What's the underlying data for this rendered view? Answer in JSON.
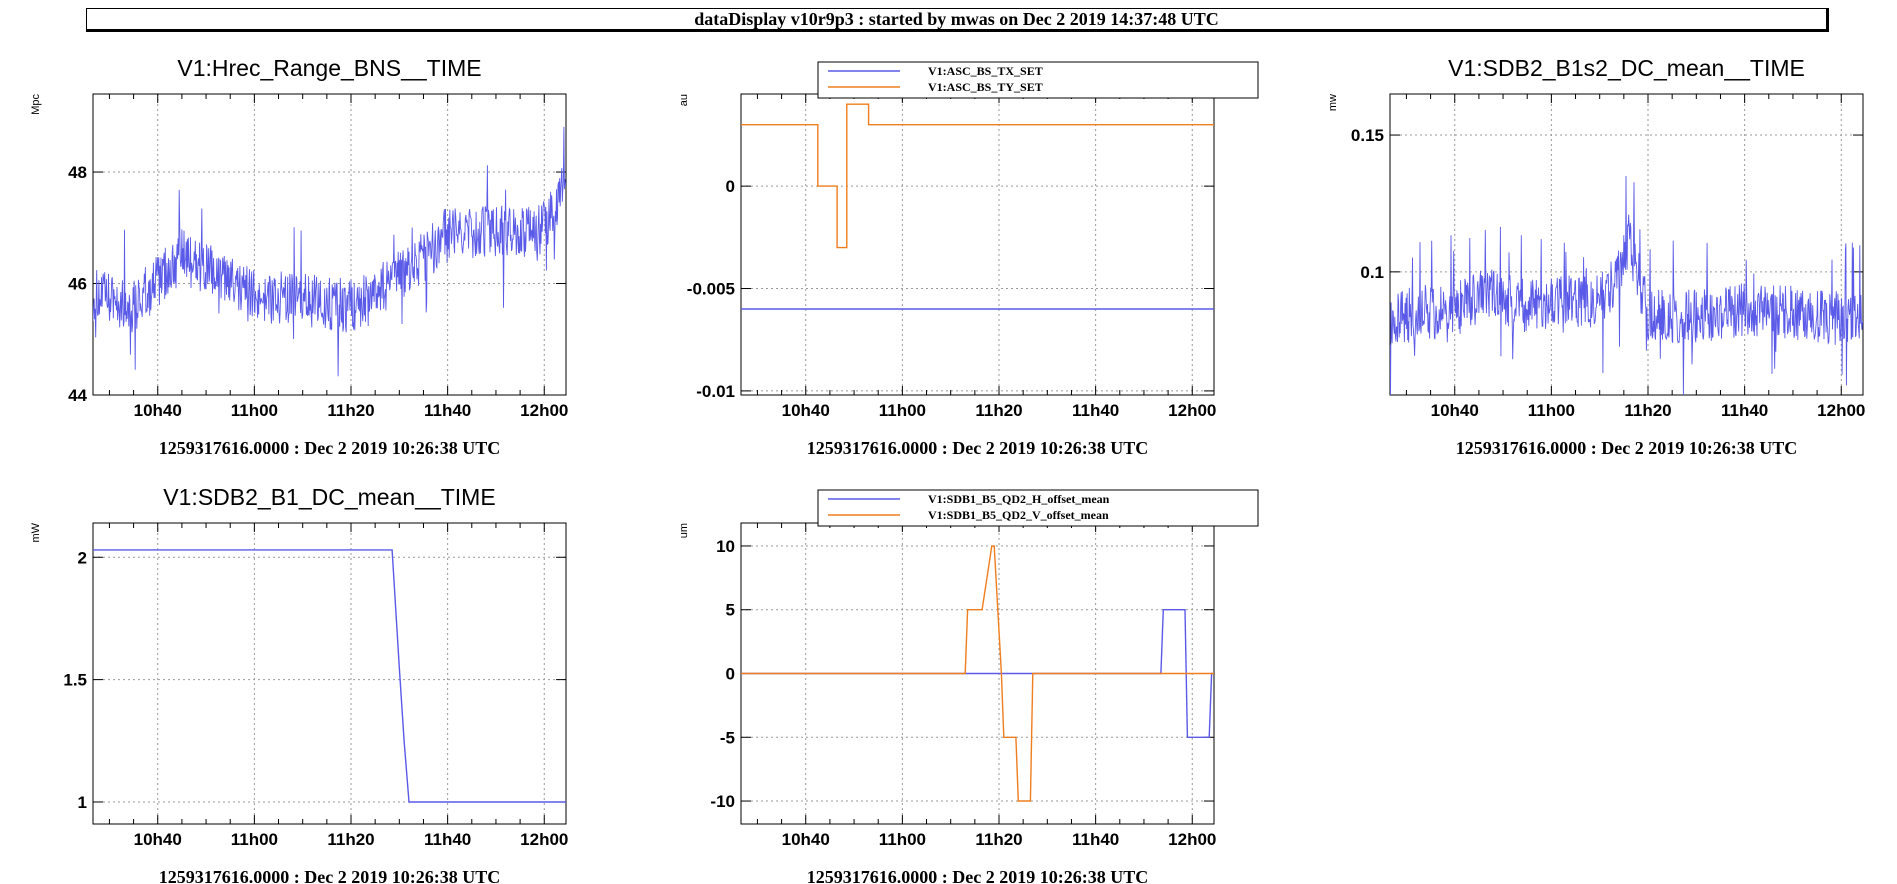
{
  "header": {
    "title": "dataDisplay v10r9p3 : started by mwas on Dec  2 2019 14:37:48 UTC"
  },
  "chart_data": [
    {
      "type": "line",
      "title": "V1:Hrec_Range_BNS__TIME",
      "ylabel": "Mpc",
      "xlabel": "1259317616.0000 : Dec  2 2019 10:26:38 UTC",
      "x_ticks": [
        "10h40",
        "11h00",
        "11h20",
        "11h40",
        "12h00"
      ],
      "y_ticks": [
        44,
        46,
        48
      ],
      "x_range_min": [
        26.6,
        124.5
      ],
      "ylim": [
        44,
        49.4
      ],
      "grid": true,
      "series": [
        {
          "color": "#5a5ae8",
          "noisy": true,
          "x": [
            26.6,
            35,
            45,
            55,
            60,
            70,
            80,
            90,
            100,
            110,
            120,
            124.5
          ],
          "values": [
            45.8,
            45.6,
            46.5,
            46.0,
            45.8,
            45.7,
            45.6,
            46.1,
            46.9,
            46.9,
            47.0,
            47.8
          ]
        }
      ]
    },
    {
      "type": "line",
      "title": "",
      "ylabel": "au",
      "xlabel": "1259317616.0000 : Dec  2 2019 10:26:38 UTC",
      "x_ticks": [
        "10h40",
        "11h00",
        "11h20",
        "11h40",
        "12h00"
      ],
      "y_ticks": [
        0,
        -0.005,
        -0.01
      ],
      "y_tick_labels": [
        "0",
        "-0.005",
        "-0.01"
      ],
      "x_range_min": [
        26.6,
        124.5
      ],
      "ylim": [
        -0.0102,
        0.0045
      ],
      "grid": true,
      "legend": "top",
      "series": [
        {
          "name": "V1:ASC_BS_TX_SET",
          "color": "#5a5ae8",
          "step": true,
          "x": [
            26.6,
            124.5
          ],
          "values": [
            -0.006,
            -0.006
          ]
        },
        {
          "name": "V1:ASC_BS_TY_SET",
          "color": "#f07d1e",
          "step": true,
          "x": [
            26.6,
            42.5,
            46.5,
            48.5,
            50.5,
            53,
            124.5
          ],
          "values": [
            0.003,
            0,
            -0.003,
            0.004,
            0.004,
            0.003,
            0.003
          ]
        }
      ]
    },
    {
      "type": "line",
      "title": "V1:SDB2_B1s2_DC_mean__TIME",
      "ylabel": "mw",
      "xlabel": "1259317616.0000 : Dec  2 2019 10:26:38 UTC",
      "x_ticks": [
        "10h40",
        "11h00",
        "11h20",
        "11h40",
        "12h00"
      ],
      "y_ticks": [
        0.1,
        0.15
      ],
      "x_range_min": [
        26.6,
        124.5
      ],
      "ylim": [
        0.055,
        0.165
      ],
      "grid": true,
      "series": [
        {
          "color": "#5a5ae8",
          "noisy": true,
          "x": [
            26.6,
            40,
            48,
            52,
            60,
            70,
            74,
            76,
            80,
            90,
            100,
            110,
            124.5
          ],
          "values": [
            0.083,
            0.086,
            0.093,
            0.087,
            0.089,
            0.089,
            0.099,
            0.112,
            0.084,
            0.084,
            0.086,
            0.085,
            0.082
          ]
        }
      ]
    },
    {
      "type": "line",
      "title": "V1:SDB2_B1_DC_mean__TIME",
      "ylabel": "mW",
      "xlabel": "1259317616.0000 : Dec  2 2019 10:26:38 UTC",
      "x_ticks": [
        "10h40",
        "11h00",
        "11h20",
        "11h40",
        "12h00"
      ],
      "y_ticks": [
        1,
        1.5,
        2
      ],
      "x_range_min": [
        26.6,
        124.5
      ],
      "ylim": [
        0.91,
        2.14
      ],
      "grid": true,
      "series": [
        {
          "color": "#5a5ae8",
          "x": [
            26.6,
            88.5,
            90,
            91,
            92,
            124.5
          ],
          "values": [
            2.03,
            2.03,
            1.55,
            1.25,
            1.0,
            1.0
          ]
        }
      ]
    },
    {
      "type": "line",
      "title": "",
      "ylabel": "um",
      "xlabel": "1259317616.0000 : Dec  2 2019 10:26:38 UTC",
      "x_ticks": [
        "10h40",
        "11h00",
        "11h20",
        "11h40",
        "12h00"
      ],
      "y_ticks": [
        -10,
        -5,
        0,
        5,
        10
      ],
      "x_range_min": [
        26.6,
        124.5
      ],
      "ylim": [
        -11.8,
        11.8
      ],
      "grid": true,
      "legend": "top",
      "series": [
        {
          "name": "V1:SDB1_B5_QD2_H_offset_mean",
          "color": "#5a5ae8",
          "x": [
            26.6,
            113.5,
            114,
            118.5,
            119,
            123.5,
            124,
            124.5
          ],
          "values": [
            0,
            0,
            5,
            5,
            -5,
            -5,
            0,
            0
          ]
        },
        {
          "name": "V1:SDB1_B5_QD2_V_offset_mean",
          "color": "#f07d1e",
          "x": [
            26.6,
            73,
            73.5,
            76,
            76.5,
            78.5,
            79,
            80.5,
            81,
            83.5,
            84,
            86.5,
            87,
            87.5,
            124.5
          ],
          "values": [
            0,
            0,
            5,
            5,
            5,
            10,
            10,
            0,
            -5,
            -5,
            -10,
            -10,
            0,
            0,
            0
          ]
        }
      ]
    }
  ]
}
